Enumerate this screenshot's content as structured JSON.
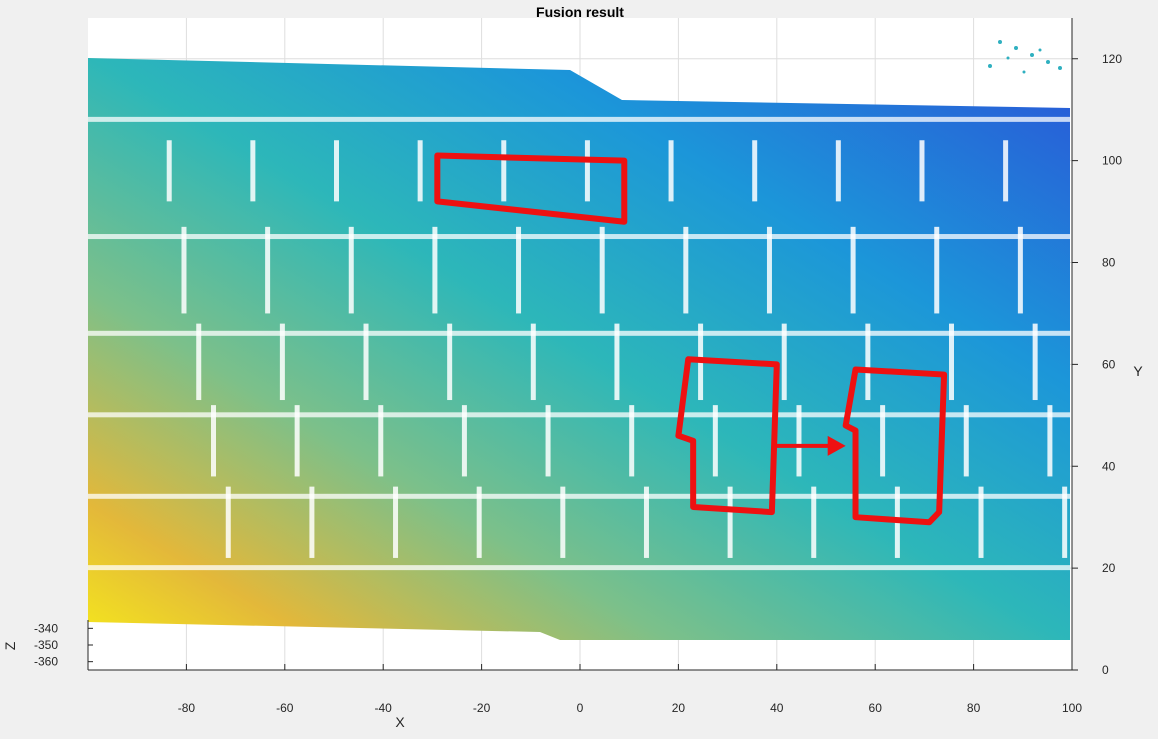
{
  "chart_data": {
    "type": "scatter",
    "subtype": "3d-point-cloud-top-view",
    "title": "Fusion result",
    "xlabel": "X",
    "ylabel": "Y",
    "zlabel": "Z",
    "xlim": [
      -100,
      100
    ],
    "ylim": [
      0,
      128
    ],
    "zlim": [
      -365,
      -335
    ],
    "x_ticks": [
      -80,
      -60,
      -40,
      -20,
      0,
      20,
      40,
      60,
      80,
      100
    ],
    "y_ticks": [
      0,
      20,
      40,
      60,
      80,
      100,
      120
    ],
    "z_ticks": [
      -340,
      -350,
      -360
    ],
    "colormap": "parula",
    "colors": {
      "highlight": "#ee1111",
      "cloud_low": "#2a55d8",
      "cloud_mid": "#2ab0b8",
      "cloud_high": "#f5e81c",
      "axes_bg": "#ffffff",
      "figure_bg": "#f0f0f0"
    },
    "annotations": [
      {
        "name": "highlight-box-upper",
        "shape": "quad",
        "points": [
          [
            -29,
            101
          ],
          [
            9,
            100
          ],
          [
            9,
            88
          ],
          [
            -29,
            92
          ]
        ]
      },
      {
        "name": "highlight-box-left",
        "shape": "polygon",
        "points": [
          [
            22,
            61
          ],
          [
            40,
            60
          ],
          [
            39,
            31
          ],
          [
            23,
            32
          ],
          [
            23,
            45
          ],
          [
            20,
            46
          ]
        ]
      },
      {
        "name": "highlight-box-right",
        "shape": "polygon",
        "points": [
          [
            56,
            59
          ],
          [
            74,
            58
          ],
          [
            73,
            31
          ],
          [
            71,
            29
          ],
          [
            56,
            30
          ],
          [
            56,
            47
          ],
          [
            54,
            48
          ]
        ]
      },
      {
        "name": "move-arrow",
        "shape": "arrow",
        "from": [
          40,
          44
        ],
        "to": [
          54,
          44
        ]
      }
    ]
  }
}
